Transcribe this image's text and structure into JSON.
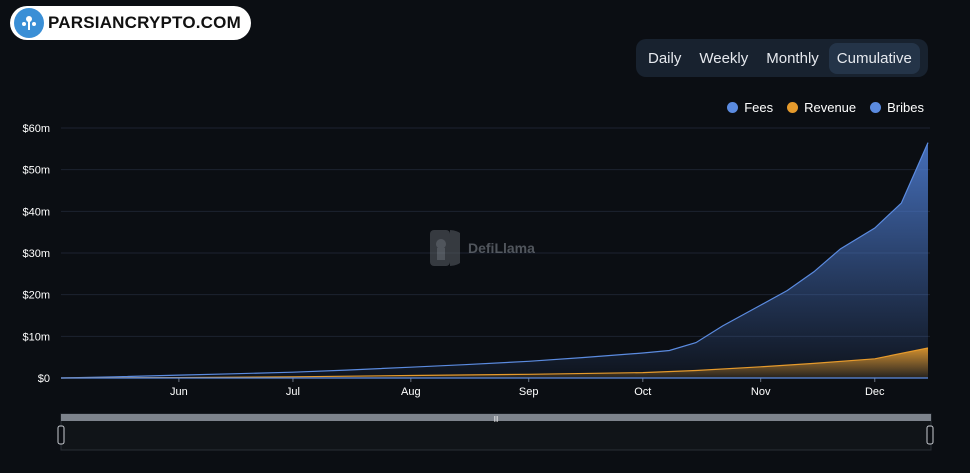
{
  "branding": {
    "logo_text": "PARSIANCRYPTO.COM",
    "watermark_text": "DefiLlama"
  },
  "tabs": [
    {
      "label": "Daily",
      "active": false
    },
    {
      "label": "Weekly",
      "active": false
    },
    {
      "label": "Monthly",
      "active": false
    },
    {
      "label": "Cumulative",
      "active": true
    }
  ],
  "colors": {
    "fees": "#5b8be0",
    "revenue": "#e59a2c",
    "bribes": "#5b8be0"
  },
  "chart_data": {
    "type": "area",
    "title": "",
    "xlabel": "",
    "ylabel": "",
    "x_ticks": [
      "Jun",
      "Jul",
      "Aug",
      "Sep",
      "Oct",
      "Nov",
      "Dec"
    ],
    "y_ticks": [
      "$0",
      "$10m",
      "$20m",
      "$30m",
      "$40m",
      "$50m",
      "$60m"
    ],
    "ylim": [
      0,
      60
    ],
    "y_unit": "$m",
    "x_range": [
      "2023-05-01",
      "2023-12-15"
    ],
    "grid": true,
    "legend_position": "top-right",
    "series": [
      {
        "name": "Fees",
        "points": [
          [
            "2023-05-01",
            0
          ],
          [
            "2023-05-15",
            0.3
          ],
          [
            "2023-06-01",
            0.7
          ],
          [
            "2023-06-15",
            1.0
          ],
          [
            "2023-07-01",
            1.4
          ],
          [
            "2023-07-15",
            1.9
          ],
          [
            "2023-08-01",
            2.6
          ],
          [
            "2023-08-15",
            3.2
          ],
          [
            "2023-09-01",
            4.0
          ],
          [
            "2023-09-15",
            4.9
          ],
          [
            "2023-10-01",
            6.0
          ],
          [
            "2023-10-08",
            6.6
          ],
          [
            "2023-10-15",
            8.5
          ],
          [
            "2023-10-22",
            12.5
          ],
          [
            "2023-11-01",
            17.5
          ],
          [
            "2023-11-08",
            21.0
          ],
          [
            "2023-11-15",
            25.5
          ],
          [
            "2023-11-22",
            31.0
          ],
          [
            "2023-12-01",
            36.0
          ],
          [
            "2023-12-08",
            42.0
          ],
          [
            "2023-12-15",
            56.5
          ]
        ]
      },
      {
        "name": "Revenue",
        "points": [
          [
            "2023-05-01",
            0
          ],
          [
            "2023-06-01",
            0.1
          ],
          [
            "2023-07-01",
            0.3
          ],
          [
            "2023-08-01",
            0.6
          ],
          [
            "2023-09-01",
            0.9
          ],
          [
            "2023-10-01",
            1.3
          ],
          [
            "2023-10-15",
            1.8
          ],
          [
            "2023-11-01",
            2.7
          ],
          [
            "2023-11-15",
            3.5
          ],
          [
            "2023-12-01",
            4.6
          ],
          [
            "2023-12-15",
            7.2
          ]
        ]
      },
      {
        "name": "Bribes",
        "points": [
          [
            "2023-05-01",
            0
          ],
          [
            "2023-12-15",
            0
          ]
        ]
      }
    ]
  },
  "range_slider": {
    "handle_glyph": "|||"
  }
}
